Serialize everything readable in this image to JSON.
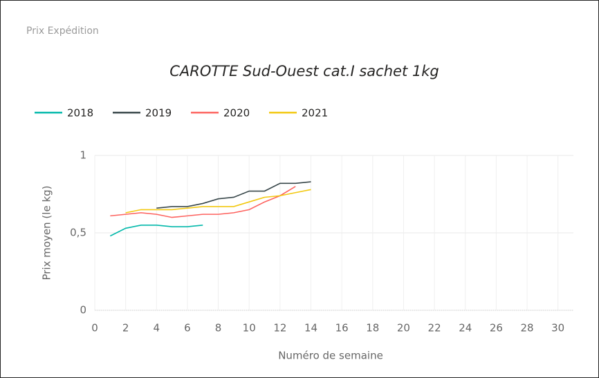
{
  "header": "Prix Expédition",
  "chart_data": {
    "type": "line",
    "title": "CAROTTE Sud-Ouest cat.I sachet 1kg",
    "x_label": "Numéro de semaine",
    "y_label": "Prix moyen  (le kg)",
    "x": [
      1,
      2,
      3,
      4,
      5,
      6,
      7,
      8,
      9,
      10,
      11,
      12,
      13,
      14
    ],
    "series": [
      {
        "name": "2018",
        "color": "#01b8aa",
        "values": [
          0.48,
          0.53,
          0.55,
          0.55,
          0.54,
          0.54,
          0.55,
          null,
          null,
          null,
          null,
          null,
          null,
          null
        ]
      },
      {
        "name": "2019",
        "color": "#374649",
        "values": [
          null,
          null,
          null,
          0.66,
          0.67,
          0.67,
          0.69,
          0.72,
          0.73,
          0.77,
          0.77,
          0.82,
          0.82,
          0.83
        ]
      },
      {
        "name": "2020",
        "color": "#fd625e",
        "values": [
          0.61,
          0.62,
          0.63,
          0.62,
          0.6,
          0.61,
          0.62,
          0.62,
          0.63,
          0.65,
          0.7,
          0.74,
          0.8,
          null
        ]
      },
      {
        "name": "2021",
        "color": "#f2c80f",
        "values": [
          null,
          0.63,
          0.65,
          0.65,
          0.65,
          0.66,
          0.67,
          0.67,
          0.67,
          0.7,
          0.73,
          0.74,
          0.76,
          0.78
        ]
      }
    ],
    "xlim": [
      0,
      31
    ],
    "xticks": [
      0,
      2,
      4,
      6,
      8,
      10,
      12,
      14,
      16,
      18,
      20,
      22,
      24,
      26,
      28,
      30
    ],
    "ylim": [
      0,
      1
    ],
    "yticks": [
      0,
      {
        "value": 0.5,
        "label": "0,5"
      },
      1
    ],
    "grid": true,
    "legend": "top-left"
  }
}
